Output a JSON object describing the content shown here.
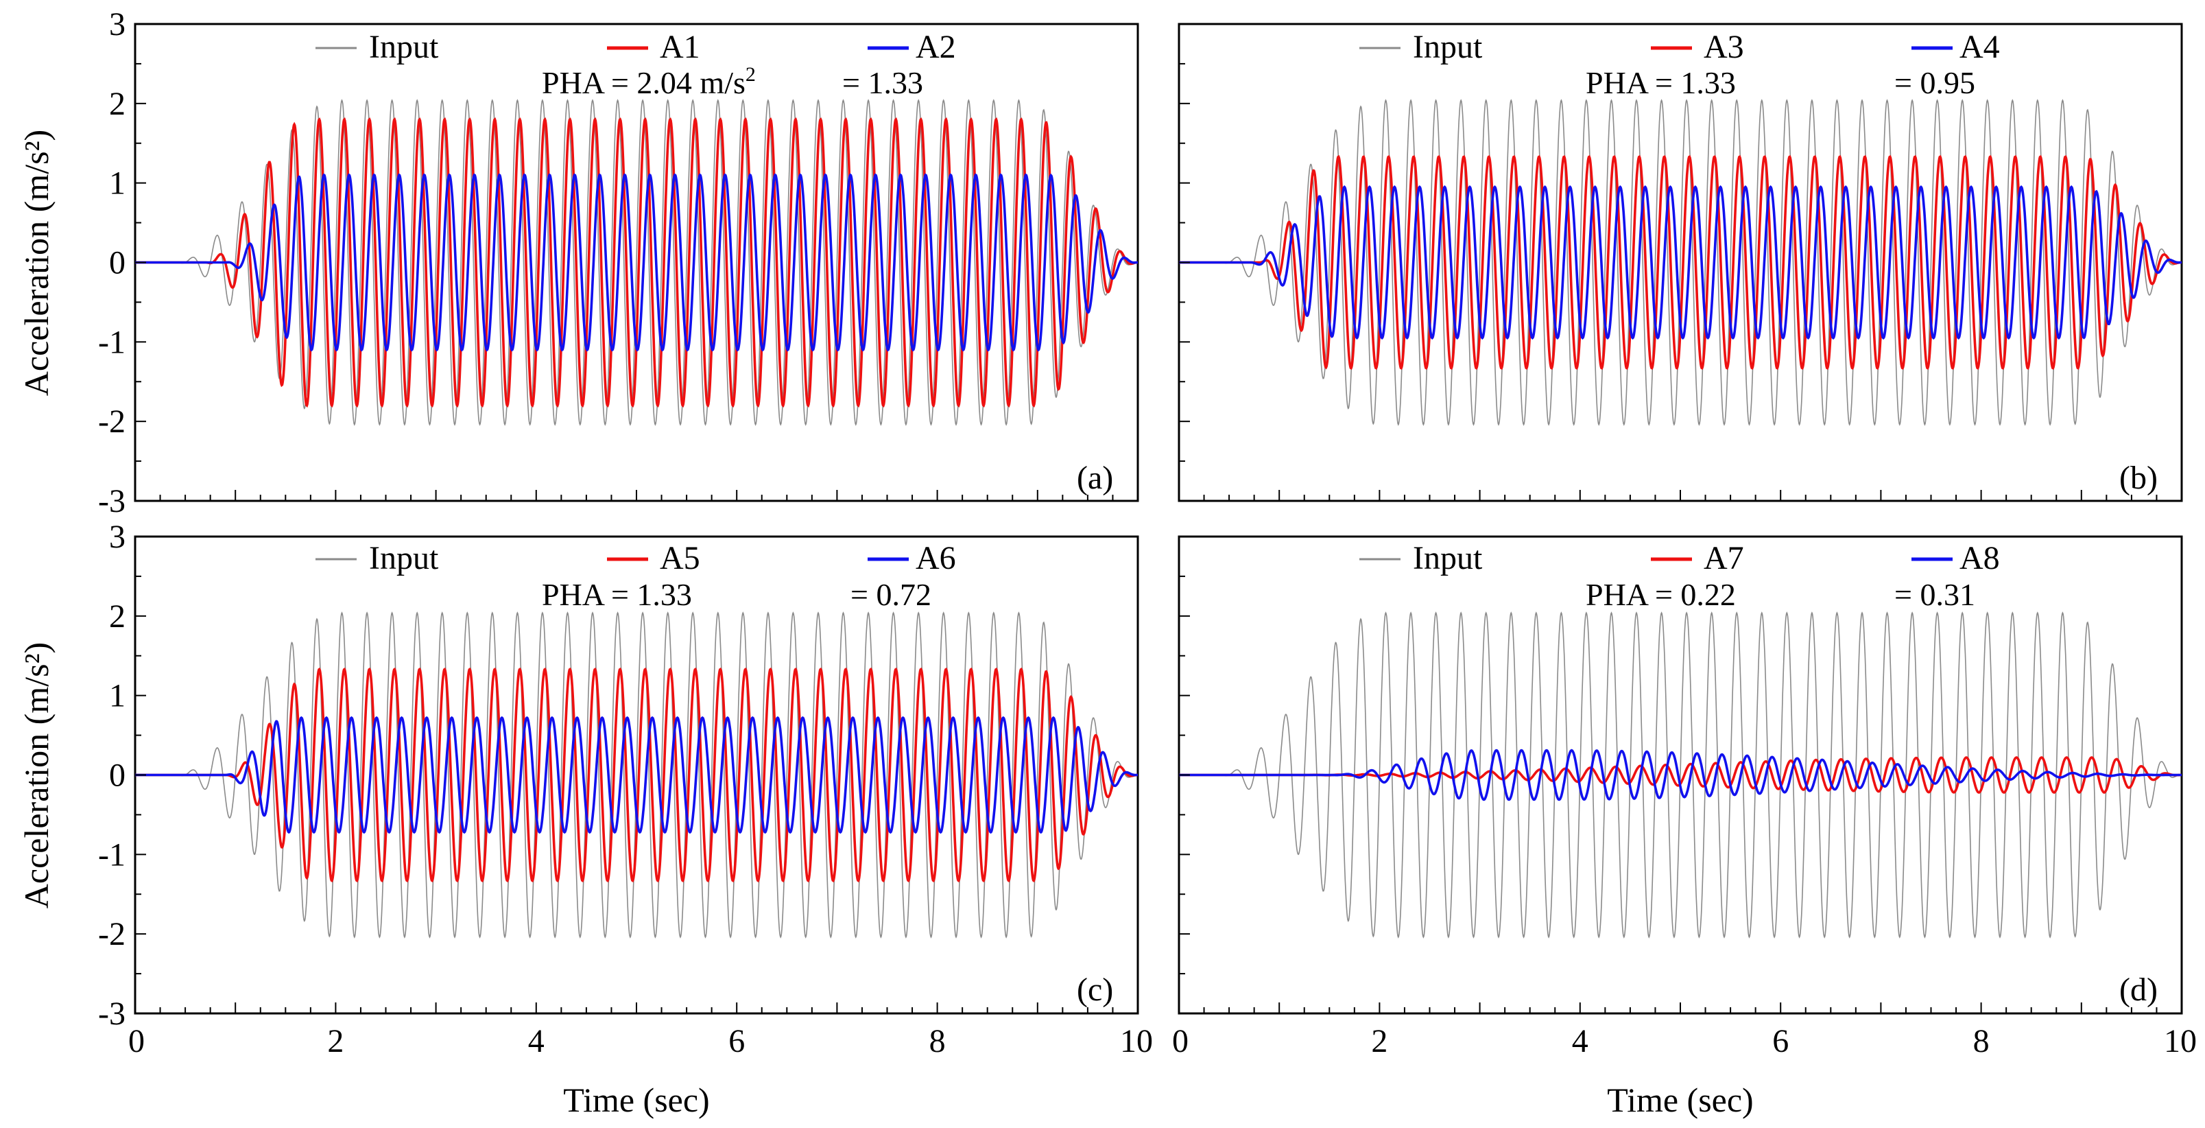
{
  "colors": {
    "input": "#8a8a8a",
    "red": "#ee1111",
    "blue": "#1111ee",
    "axis": "#000000"
  },
  "shared": {
    "xlabel": "Time (sec)",
    "ylabel": "Acceleration (m/s²)"
  },
  "chart_data": [
    {
      "type": "line",
      "panel": "(a)",
      "xlim": [
        0,
        10
      ],
      "ylim": [
        -3,
        3
      ],
      "xticks": [
        "0",
        "2",
        "4",
        "6",
        "8",
        "10"
      ],
      "yticks": [
        "3",
        "2",
        "1",
        "0",
        "-1",
        "-2",
        "-3"
      ],
      "series": [
        {
          "name": "Input",
          "color": "#8a8a8a",
          "peak": 2.04,
          "onset": 0.4,
          "rise": 1.6,
          "decay_start": 8.9,
          "phase_lag": 0.0
        },
        {
          "name": "A1",
          "color": "#ee1111",
          "peak": 1.8,
          "onset": 0.7,
          "rise": 1.0,
          "decay_start": 9.0,
          "phase_lag": 0.6
        },
        {
          "name": "A2",
          "color": "#1111ee",
          "peak": 1.1,
          "onset": 0.9,
          "rise": 0.8,
          "decay_start": 9.1,
          "phase_lag": 1.8
        }
      ],
      "annotation": {
        "prefix": "PHA = 2.04 m/s",
        "sup": "2",
        "second": "= 1.33"
      }
    },
    {
      "type": "line",
      "panel": "(b)",
      "xlim": [
        0,
        10
      ],
      "ylim": [
        -3,
        3
      ],
      "xticks": [
        "0",
        "2",
        "4",
        "6",
        "8",
        "10"
      ],
      "yticks": [
        "3",
        "2",
        "1",
        "0",
        "-1",
        "-2",
        "-3"
      ],
      "series": [
        {
          "name": "Input",
          "color": "#8a8a8a",
          "peak": 2.04,
          "onset": 0.4,
          "rise": 1.6,
          "decay_start": 8.9,
          "phase_lag": 0.0
        },
        {
          "name": "A3",
          "color": "#ee1111",
          "peak": 1.33,
          "onset": 0.8,
          "rise": 0.7,
          "decay_start": 9.0,
          "phase_lag": 0.7
        },
        {
          "name": "A4",
          "color": "#1111ee",
          "peak": 0.95,
          "onset": 0.7,
          "rise": 0.9,
          "decay_start": 9.0,
          "phase_lag": 2.2
        }
      ],
      "annotation": {
        "prefix": "PHA = 1.33",
        "sup": "",
        "second": "= 0.95"
      }
    },
    {
      "type": "line",
      "panel": "(c)",
      "xlim": [
        0,
        10
      ],
      "ylim": [
        -3,
        3
      ],
      "xticks": [
        "0",
        "2",
        "4",
        "6",
        "8",
        "10"
      ],
      "yticks": [
        "3",
        "2",
        "1",
        "0",
        "-1",
        "-2",
        "-3"
      ],
      "series": [
        {
          "name": "Input",
          "color": "#8a8a8a",
          "peak": 2.04,
          "onset": 0.4,
          "rise": 1.6,
          "decay_start": 8.9,
          "phase_lag": 0.0
        },
        {
          "name": "A5",
          "color": "#ee1111",
          "peak": 1.33,
          "onset": 0.9,
          "rise": 0.9,
          "decay_start": 9.0,
          "phase_lag": 0.6
        },
        {
          "name": "A6",
          "color": "#1111ee",
          "peak": 0.72,
          "onset": 0.9,
          "rise": 0.6,
          "decay_start": 9.2,
          "phase_lag": 2.4
        }
      ],
      "annotation": {
        "prefix": "PHA = 1.33",
        "sup": "",
        "second": "= 0.72"
      }
    },
    {
      "type": "line",
      "panel": "(d)",
      "xlim": [
        0,
        10
      ],
      "ylim": [
        -3,
        3
      ],
      "xticks": [
        "0",
        "2",
        "4",
        "6",
        "8",
        "10"
      ],
      "yticks": [
        "3",
        "2",
        "1",
        "0",
        "-1",
        "-2",
        "-3"
      ],
      "series": [
        {
          "name": "Input",
          "color": "#8a8a8a",
          "peak": 2.04,
          "onset": 0.4,
          "rise": 1.6,
          "decay_start": 8.9,
          "phase_lag": 0.0
        },
        {
          "name": "A7",
          "color": "#ee1111",
          "peak": 0.22,
          "onset": 1.0,
          "rise": 7.0,
          "decay_start": 9.2,
          "phase_lag": 1.0
        },
        {
          "name": "A8",
          "color": "#1111ee",
          "peak": 0.31,
          "onset": 1.5,
          "rise": 1.5,
          "decay_start": 3.8,
          "phase_lag": 2.6
        }
      ],
      "annotation": {
        "prefix": "PHA = 0.22",
        "sup": "",
        "second": "= 0.31"
      }
    }
  ]
}
